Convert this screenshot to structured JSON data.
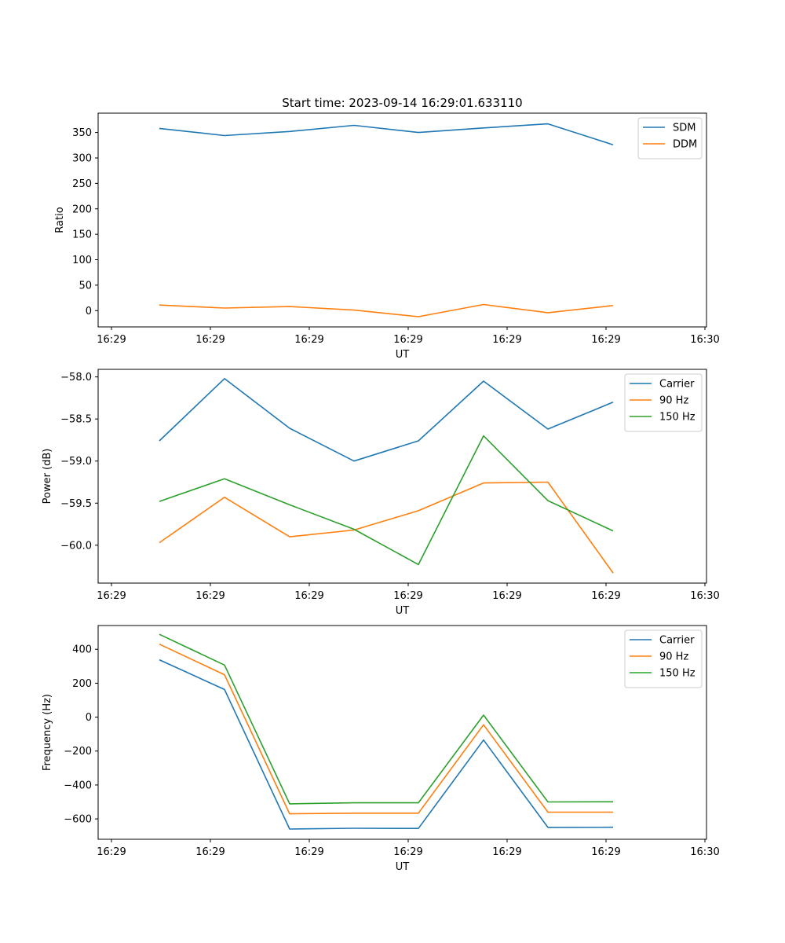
{
  "figure": {
    "title": "Start time: 2023-09-14 16:29:01.633110"
  },
  "chart_data": [
    {
      "type": "line",
      "xlabel": "UT",
      "ylabel": "Ratio",
      "x_tick_labels": [
        "16:29",
        "16:29",
        "16:29",
        "16:29",
        "16:29",
        "16:29",
        "16:30"
      ],
      "yticks": [
        0,
        50,
        100,
        150,
        200,
        250,
        300,
        350
      ],
      "ylim": [
        -32,
        388
      ],
      "legend_position": "upper-right",
      "series": [
        {
          "name": "SDM",
          "color": "#1f77b4",
          "values": [
            358,
            344,
            352,
            364,
            350,
            359,
            367,
            326
          ]
        },
        {
          "name": "DDM",
          "color": "#ff7f0e",
          "values": [
            11,
            5,
            8,
            1,
            -12,
            12,
            -4,
            10
          ]
        }
      ]
    },
    {
      "type": "line",
      "xlabel": "UT",
      "ylabel": "Power (dB)",
      "x_tick_labels": [
        "16:29",
        "16:29",
        "16:29",
        "16:29",
        "16:29",
        "16:29",
        "16:30"
      ],
      "yticks": [
        -60.0,
        -59.5,
        -59.0,
        -58.5,
        -58.0
      ],
      "ytick_labels": [
        "−60.0",
        "−59.5",
        "−59.0",
        "−58.5",
        "−58.0"
      ],
      "ylim": [
        -60.45,
        -57.91
      ],
      "legend_position": "upper-right",
      "series": [
        {
          "name": "Carrier",
          "color": "#1f77b4",
          "values": [
            -58.76,
            -58.02,
            -58.61,
            -59.0,
            -58.76,
            -58.05,
            -58.62,
            -58.3
          ]
        },
        {
          "name": "90 Hz",
          "color": "#ff7f0e",
          "values": [
            -59.97,
            -59.43,
            -59.9,
            -59.82,
            -59.59,
            -59.26,
            -59.25,
            -60.33
          ]
        },
        {
          "name": "150 Hz",
          "color": "#2ca02c",
          "values": [
            -59.48,
            -59.21,
            -59.52,
            -59.81,
            -60.23,
            -58.7,
            -59.47,
            -59.83
          ]
        }
      ]
    },
    {
      "type": "line",
      "xlabel": "UT",
      "ylabel": "Frequency (Hz)",
      "x_tick_labels": [
        "16:29",
        "16:29",
        "16:29",
        "16:29",
        "16:29",
        "16:29",
        "16:30"
      ],
      "yticks": [
        -600,
        -400,
        -200,
        0,
        200,
        400
      ],
      "ytick_labels": [
        "−600",
        "−400",
        "−200",
        "0",
        "200",
        "400"
      ],
      "ylim": [
        -720,
        540
      ],
      "legend_position": "upper-right",
      "series": [
        {
          "name": "Carrier",
          "color": "#1f77b4",
          "values": [
            338,
            163,
            -660,
            -655,
            -656,
            -135,
            -650,
            -649
          ]
        },
        {
          "name": "90 Hz",
          "color": "#ff7f0e",
          "values": [
            430,
            250,
            -570,
            -566,
            -566,
            -45,
            -560,
            -560
          ]
        },
        {
          "name": "150 Hz",
          "color": "#2ca02c",
          "values": [
            488,
            307,
            -511,
            -505,
            -505,
            12,
            -500,
            -499
          ]
        }
      ]
    }
  ]
}
